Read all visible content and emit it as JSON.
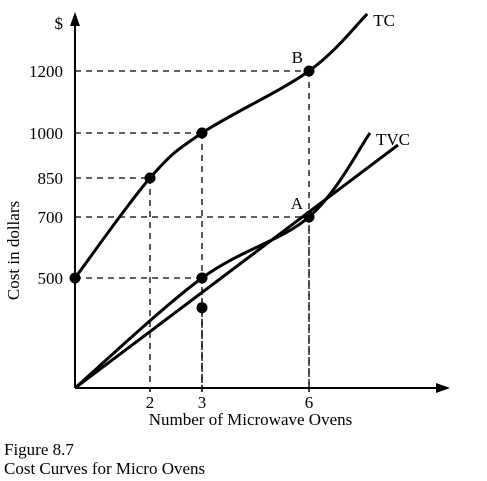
{
  "chart_data": {
    "type": "line",
    "title": "",
    "xlabel": "Number of Microwave Ovens",
    "ylabel": "Cost in dollars",
    "y_unit_label": "$",
    "x_ticks": [
      2,
      3,
      6
    ],
    "y_ticks": [
      500,
      700,
      850,
      1000,
      1200
    ],
    "xlim": [
      0,
      10.5
    ],
    "ylim": [
      0,
      1500
    ],
    "grid": false,
    "series": [
      {
        "name": "TC",
        "x": [
          0,
          2,
          3,
          6,
          8.1
        ],
        "y": [
          500,
          850,
          1000,
          1200,
          1490
        ],
        "markers": [
          {
            "x": 0,
            "y": 500
          },
          {
            "x": 2,
            "y": 850
          },
          {
            "x": 3,
            "y": 1000
          },
          {
            "x": 6,
            "y": 1200
          }
        ]
      },
      {
        "name": "TVC",
        "x": [
          0,
          3,
          6,
          8.2
        ],
        "y": [
          0,
          500,
          700,
          1000
        ],
        "markers": [
          {
            "x": 3,
            "y": 500
          },
          {
            "x": 6,
            "y": 700
          }
        ]
      },
      {
        "name": "",
        "x": [
          0,
          9.1
        ],
        "y": [
          0,
          960
        ],
        "markers": [
          {
            "x": 3,
            "y": 365
          }
        ]
      }
    ],
    "annotations": [
      {
        "text": "A",
        "x": 6,
        "y": 700
      },
      {
        "text": "B",
        "x": 6,
        "y": 1200
      }
    ]
  },
  "caption": {
    "figure": "Figure 8.7",
    "text": "Cost Curves for Micro Ovens"
  }
}
